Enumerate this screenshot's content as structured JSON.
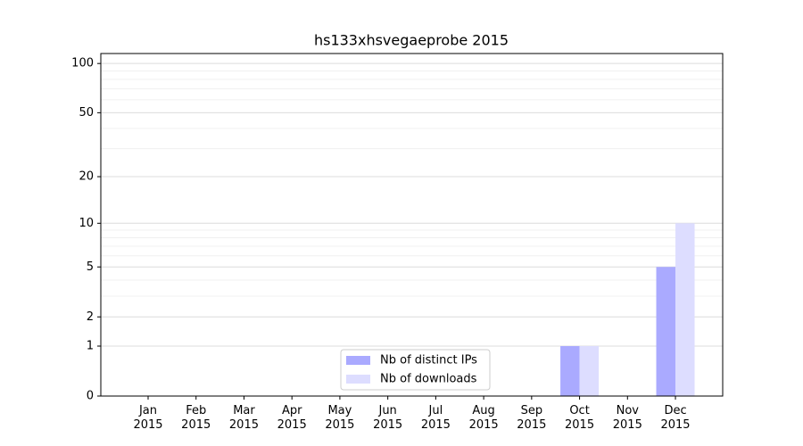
{
  "chart_data": {
    "type": "bar",
    "title": "hs133xhsvegaeprobe 2015",
    "categories": [
      "Jan\n2015",
      "Feb\n2015",
      "Mar\n2015",
      "Apr\n2015",
      "May\n2015",
      "Jun\n2015",
      "Jul\n2015",
      "Aug\n2015",
      "Sep\n2015",
      "Oct\n2015",
      "Nov\n2015",
      "Dec\n2015"
    ],
    "series": [
      {
        "name": "Nb of distinct IPs",
        "color": "#aaaaff",
        "values": [
          0,
          0,
          0,
          0,
          0,
          0,
          0,
          0,
          0,
          1,
          0,
          5
        ]
      },
      {
        "name": "Nb of downloads",
        "color": "#ddddff",
        "values": [
          0,
          0,
          0,
          0,
          0,
          0,
          0,
          0,
          0,
          1,
          0,
          10
        ]
      }
    ],
    "y_scale": "log1p",
    "ylim": [
      0,
      115
    ],
    "yticks": [
      0,
      1,
      2,
      5,
      10,
      20,
      50,
      100
    ],
    "minor_yticks": [
      3,
      4,
      6,
      7,
      8,
      9,
      30,
      40,
      60,
      70,
      80,
      90
    ],
    "grid": true,
    "legend_position": "lower center"
  }
}
